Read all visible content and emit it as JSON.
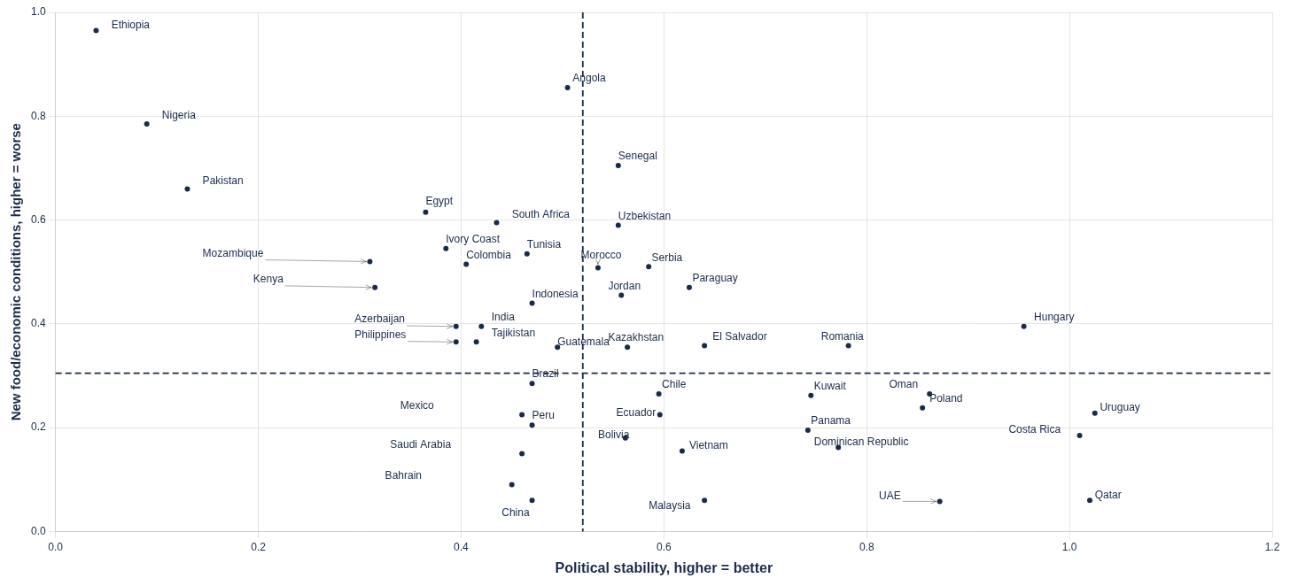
{
  "chart_data": {
    "type": "scatter",
    "xlabel": "Political stability, higher = better",
    "ylabel": "New food/economic conditions, higher = worse",
    "xlim": [
      0.0,
      1.2
    ],
    "ylim": [
      0.0,
      1.0
    ],
    "xticks": [
      {
        "value": 0.0,
        "label": "0.0"
      },
      0.2,
      0.4,
      0.6,
      0.8,
      {
        "value": 1.0,
        "label": "1.0"
      },
      1.2
    ],
    "yticks": [
      {
        "value": 0.0,
        "label": "0.0"
      },
      0.2,
      0.4,
      0.6,
      0.8,
      {
        "value": 1.0,
        "label": "1.0"
      }
    ],
    "grid": true,
    "color": "#1a2b4a",
    "vlines": [
      0.52
    ],
    "hlines": [
      0.305
    ],
    "x": [
      0.04,
      0.09,
      0.13,
      0.365,
      0.435,
      0.31,
      0.385,
      0.405,
      0.465,
      0.315,
      0.47,
      0.395,
      0.42,
      0.395,
      0.415,
      0.495,
      0.47,
      0.46,
      0.47,
      0.46,
      0.45,
      0.47,
      0.505,
      0.555,
      0.555,
      0.535,
      0.585,
      0.558,
      0.625,
      0.564,
      0.64,
      0.595,
      0.596,
      0.562,
      0.618,
      0.64,
      0.782,
      0.955,
      0.745,
      0.862,
      0.855,
      0.742,
      0.772,
      0.872,
      1.025,
      1.01,
      1.02
    ],
    "values": [
      0.965,
      0.785,
      0.66,
      0.615,
      0.595,
      0.52,
      0.545,
      0.515,
      0.535,
      0.47,
      0.44,
      0.395,
      0.395,
      0.365,
      0.365,
      0.355,
      0.285,
      0.225,
      0.205,
      0.15,
      0.09,
      0.06,
      0.855,
      0.705,
      0.59,
      0.508,
      0.51,
      0.455,
      0.47,
      0.355,
      0.358,
      0.265,
      0.225,
      0.18,
      0.155,
      0.06,
      0.358,
      0.395,
      0.262,
      0.265,
      0.238,
      0.195,
      0.162,
      0.058,
      0.228,
      0.185,
      0.06
    ],
    "annotations": [
      {
        "text": "Ethiopia",
        "x": 0.055,
        "y": 0.965,
        "arrow": false
      },
      {
        "text": "Nigeria",
        "x": 0.105,
        "y": 0.79,
        "arrow": false
      },
      {
        "text": "Pakistan",
        "x": 0.145,
        "y": 0.665,
        "arrow": false
      },
      {
        "text": "Egypt",
        "x": 0.365,
        "y": 0.625,
        "arrow": false
      },
      {
        "text": "South Africa",
        "x": 0.45,
        "y": 0.6,
        "arrow": false
      },
      {
        "text": "Mozambique",
        "x": 0.145,
        "y": 0.525,
        "arrow": true
      },
      {
        "text": "Ivory Coast",
        "x": 0.385,
        "y": 0.552,
        "arrow": false
      },
      {
        "text": "Colombia",
        "x": 0.405,
        "y": 0.522,
        "arrow": false
      },
      {
        "text": "Tunisia",
        "x": 0.465,
        "y": 0.542,
        "arrow": false
      },
      {
        "text": "Kenya",
        "x": 0.195,
        "y": 0.475,
        "arrow": true
      },
      {
        "text": "Indonesia",
        "x": 0.47,
        "y": 0.447,
        "arrow": false
      },
      {
        "text": "Azerbaijan",
        "x": 0.295,
        "y": 0.398,
        "arrow": true
      },
      {
        "text": "India",
        "x": 0.43,
        "y": 0.402,
        "arrow": false
      },
      {
        "text": "Philippines",
        "x": 0.295,
        "y": 0.368,
        "arrow": true
      },
      {
        "text": "Tajikistan",
        "x": 0.43,
        "y": 0.372,
        "arrow": false
      },
      {
        "text": "Guatemala",
        "x": 0.495,
        "y": 0.355,
        "arrow": false
      },
      {
        "text": "Brazil",
        "x": 0.47,
        "y": 0.292,
        "arrow": false
      },
      {
        "text": "Mexico",
        "x": 0.34,
        "y": 0.232,
        "arrow": false
      },
      {
        "text": "Peru",
        "x": 0.47,
        "y": 0.212,
        "arrow": false
      },
      {
        "text": "Saudi Arabia",
        "x": 0.33,
        "y": 0.157,
        "arrow": false
      },
      {
        "text": "Bahrain",
        "x": 0.325,
        "y": 0.097,
        "arrow": false
      },
      {
        "text": "China",
        "x": 0.44,
        "y": 0.025,
        "arrow": false
      },
      {
        "text": "Angola",
        "x": 0.51,
        "y": 0.862,
        "arrow": false
      },
      {
        "text": "Senegal",
        "x": 0.555,
        "y": 0.712,
        "arrow": false
      },
      {
        "text": "Uzbekistan",
        "x": 0.555,
        "y": 0.597,
        "arrow": false
      },
      {
        "text": "Morocco",
        "x": 0.518,
        "y": 0.522,
        "arrow": true
      },
      {
        "text": "Serbia",
        "x": 0.588,
        "y": 0.517,
        "arrow": false
      },
      {
        "text": "Jordan",
        "x": 0.545,
        "y": 0.462,
        "arrow": false
      },
      {
        "text": "Paraguay",
        "x": 0.628,
        "y": 0.477,
        "arrow": false
      },
      {
        "text": "Kazakhstan",
        "x": 0.545,
        "y": 0.362,
        "arrow": false
      },
      {
        "text": "El Salvador",
        "x": 0.648,
        "y": 0.365,
        "arrow": false
      },
      {
        "text": "Chile",
        "x": 0.598,
        "y": 0.272,
        "arrow": false
      },
      {
        "text": "Ecuador",
        "x": 0.553,
        "y": 0.218,
        "arrow": false
      },
      {
        "text": "Bolivia",
        "x": 0.535,
        "y": 0.175,
        "arrow": false
      },
      {
        "text": "Vietnam",
        "x": 0.625,
        "y": 0.155,
        "arrow": false
      },
      {
        "text": "Malaysia",
        "x": 0.585,
        "y": 0.038,
        "arrow": false
      },
      {
        "text": "Romania",
        "x": 0.755,
        "y": 0.365,
        "arrow": false
      },
      {
        "text": "Hungary",
        "x": 0.965,
        "y": 0.402,
        "arrow": false
      },
      {
        "text": "Kuwait",
        "x": 0.748,
        "y": 0.269,
        "arrow": false
      },
      {
        "text": "Oman",
        "x": 0.822,
        "y": 0.272,
        "arrow": false
      },
      {
        "text": "Poland",
        "x": 0.862,
        "y": 0.245,
        "arrow": false
      },
      {
        "text": "Panama",
        "x": 0.745,
        "y": 0.202,
        "arrow": false
      },
      {
        "text": "Dominican Republic",
        "x": 0.748,
        "y": 0.162,
        "arrow": false
      },
      {
        "text": "UAE",
        "x": 0.812,
        "y": 0.058,
        "arrow": true
      },
      {
        "text": "Uruguay",
        "x": 1.03,
        "y": 0.228,
        "arrow": false
      },
      {
        "text": "Costa Rica",
        "x": 0.94,
        "y": 0.185,
        "arrow": false
      },
      {
        "text": "Qatar",
        "x": 1.025,
        "y": 0.06,
        "arrow": false
      }
    ]
  }
}
